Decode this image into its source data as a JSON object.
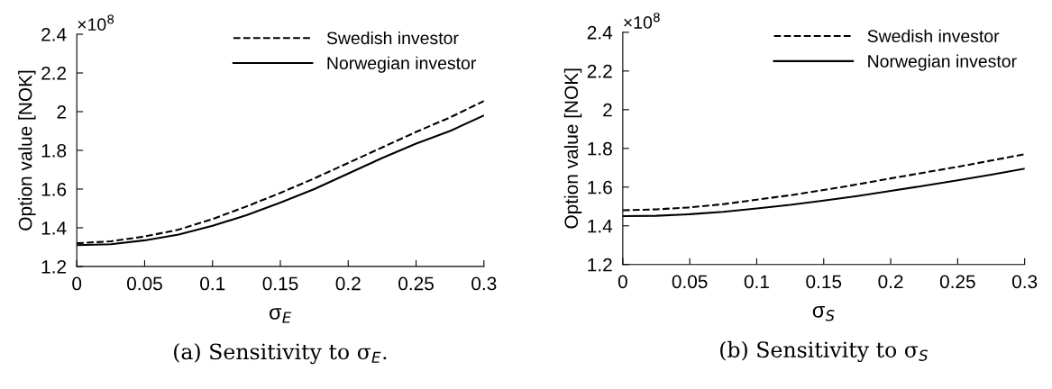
{
  "chart_data": [
    {
      "type": "line",
      "xlabel": "σ$_{E}$",
      "ylabel": "Option value [NOK]",
      "xlim": [
        0,
        0.3
      ],
      "ylim": [
        1.2,
        2.4
      ],
      "xticks": [
        0,
        0.05,
        0.1,
        0.15,
        0.2,
        0.25,
        0.3
      ],
      "yticks": [
        1.2,
        1.4,
        1.6,
        1.8,
        2,
        2.2,
        2.4
      ],
      "grid": false,
      "legend": "top right",
      "marker": "none",
      "x": [
        0,
        0.025,
        0.05,
        0.075,
        0.1,
        0.125,
        0.15,
        0.175,
        0.2,
        0.225,
        0.25,
        0.275,
        0.3
      ],
      "series": [
        {
          "name": "Swedish investor",
          "color": "#000000",
          "line_style": "dashed",
          "values": [
            1.32,
            1.33,
            1.355,
            1.39,
            1.445,
            1.51,
            1.58,
            1.655,
            1.735,
            1.815,
            1.895,
            1.97,
            2.055
          ]
        },
        {
          "name": "Norwegian investor",
          "color": "#000000",
          "line_style": "solid",
          "values": [
            1.31,
            1.315,
            1.335,
            1.365,
            1.41,
            1.465,
            1.53,
            1.6,
            1.68,
            1.76,
            1.835,
            1.9,
            1.98
          ]
        }
      ],
      "annotations": [
        "×10$^{8}$",
        "(a) Sensitivity to σ$_{E}$."
      ]
    },
    {
      "type": "line",
      "xlabel": "σ$_{S}$",
      "ylabel": "Option value [NOK]",
      "xlim": [
        0,
        0.3
      ],
      "ylim": [
        1.2,
        2.4
      ],
      "xticks": [
        0,
        0.05,
        0.1,
        0.15,
        0.2,
        0.25,
        0.3
      ],
      "yticks": [
        1.2,
        1.4,
        1.6,
        1.8,
        2,
        2.2,
        2.4
      ],
      "grid": false,
      "legend": "top right",
      "marker": "none",
      "x": [
        0,
        0.025,
        0.05,
        0.075,
        0.1,
        0.125,
        0.15,
        0.175,
        0.2,
        0.225,
        0.25,
        0.275,
        0.3
      ],
      "series": [
        {
          "name": "Swedish investor",
          "color": "#000000",
          "line_style": "dashed",
          "values": [
            1.48,
            1.485,
            1.495,
            1.512,
            1.535,
            1.558,
            1.585,
            1.614,
            1.645,
            1.675,
            1.705,
            1.737,
            1.77
          ]
        },
        {
          "name": "Norwegian investor",
          "color": "#000000",
          "line_style": "solid",
          "values": [
            1.45,
            1.452,
            1.46,
            1.472,
            1.49,
            1.508,
            1.53,
            1.554,
            1.58,
            1.607,
            1.635,
            1.664,
            1.695
          ]
        }
      ],
      "annotations": [
        "×10$^{8}$",
        "(b) Sensitivity to σ$_{S}$"
      ]
    }
  ]
}
